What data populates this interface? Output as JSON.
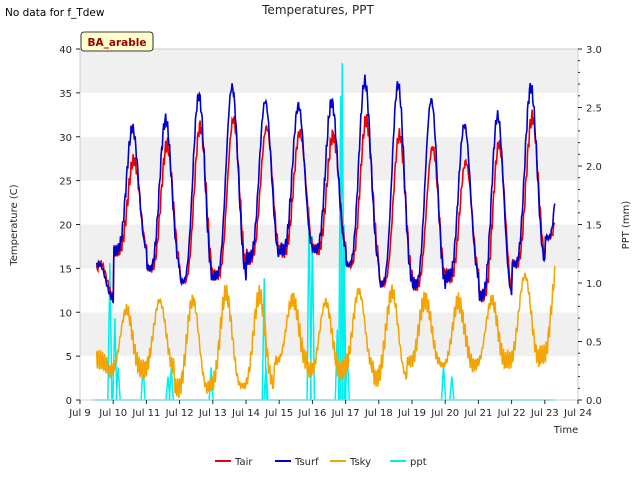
{
  "corner_note": "No data for f_Tdew",
  "badge": "BA_arable",
  "chart_data": {
    "type": "line",
    "title": "Temperatures, PPT",
    "xlabel": "Time",
    "ylabel": "Temperature (C)",
    "y2label": "PPT (mm)",
    "xlim": [
      9,
      24
    ],
    "ylim": [
      0,
      40
    ],
    "y2lim": [
      0,
      3.0
    ],
    "x_ticks": [
      9,
      10,
      11,
      12,
      13,
      14,
      15,
      16,
      17,
      18,
      19,
      20,
      21,
      22,
      23,
      24
    ],
    "x_tick_labels": [
      "Jul 9",
      "Jul 10",
      "Jul 11",
      "Jul 12",
      "Jul 13",
      "Jul 14",
      "Jul 15",
      "Jul 16",
      "Jul 17",
      "Jul 18",
      "Jul 19",
      "Jul 20",
      "Jul 21",
      "Jul 22",
      "Jul 23",
      "Jul 24"
    ],
    "y_ticks": [
      0,
      5,
      10,
      15,
      20,
      25,
      30,
      35,
      40
    ],
    "y_tick_labels": [
      "0",
      "5",
      "10",
      "15",
      "20",
      "25",
      "30",
      "35",
      "40"
    ],
    "y2_ticks": [
      0,
      0.5,
      1.0,
      1.5,
      2.0,
      2.5,
      3.0
    ],
    "y2_tick_labels": [
      "0.0",
      "0.5",
      "1.0",
      "1.5",
      "2.0",
      "2.5",
      "3.0"
    ],
    "grid": false,
    "background_bands": true,
    "legend_position": "bottom-center",
    "day_extremes": {
      "days": [
        9.5,
        10,
        11,
        12,
        13,
        14,
        15,
        16,
        17,
        18,
        19,
        20,
        21,
        22,
        23
      ],
      "Tair_max": [
        12,
        27,
        27.5,
        30,
        32,
        32,
        30.5,
        30.5,
        30,
        33,
        28.5,
        29,
        26,
        31,
        33
      ],
      "Tsurf_max": [
        12.5,
        31.5,
        30.5,
        33,
        36,
        35.5,
        33,
        34,
        34,
        38,
        34.5,
        34,
        29.5,
        34.5,
        36.5
      ],
      "min": [
        11.5,
        17.5,
        15.5,
        13.5,
        13.5,
        16,
        17,
        17.5,
        16,
        13.5,
        12.5,
        15,
        11,
        14.5,
        18.5
      ],
      "Tsky_max": [
        4.5,
        10,
        10.5,
        12,
        11,
        13,
        11,
        12,
        10.5,
        14,
        11,
        12,
        10.5,
        12,
        16
      ],
      "Tsky_min": [
        4,
        3,
        4.5,
        1,
        2,
        0.5,
        5,
        3,
        4,
        2,
        4.5,
        4,
        4,
        4.5,
        5
      ]
    },
    "series": [
      {
        "name": "Tair",
        "color": "#ee0000",
        "axis": "left"
      },
      {
        "name": "Tsurf",
        "color": "#0000cc",
        "axis": "left"
      },
      {
        "name": "Tsky",
        "color": "#f5a300",
        "axis": "left"
      },
      {
        "name": "ppt",
        "color": "#00eeee",
        "axis": "right",
        "events": [
          {
            "x": 9.9,
            "v": 1.17
          },
          {
            "x": 10.05,
            "v": 0.7
          },
          {
            "x": 10.15,
            "v": 0.28
          },
          {
            "x": 10.9,
            "v": 0.3
          },
          {
            "x": 11.65,
            "v": 0.2
          },
          {
            "x": 11.75,
            "v": 0.28
          },
          {
            "x": 12.95,
            "v": 0.28
          },
          {
            "x": 14.55,
            "v": 1.04
          },
          {
            "x": 14.6,
            "v": 0.28
          },
          {
            "x": 15.9,
            "v": 1.65
          },
          {
            "x": 16.0,
            "v": 1.4
          },
          {
            "x": 16.75,
            "v": 0.6
          },
          {
            "x": 16.85,
            "v": 2.6
          },
          {
            "x": 16.9,
            "v": 2.88
          },
          {
            "x": 16.95,
            "v": 1.5
          },
          {
            "x": 17.05,
            "v": 0.4
          },
          {
            "x": 19.95,
            "v": 0.3
          },
          {
            "x": 20.2,
            "v": 0.2
          }
        ]
      }
    ]
  }
}
